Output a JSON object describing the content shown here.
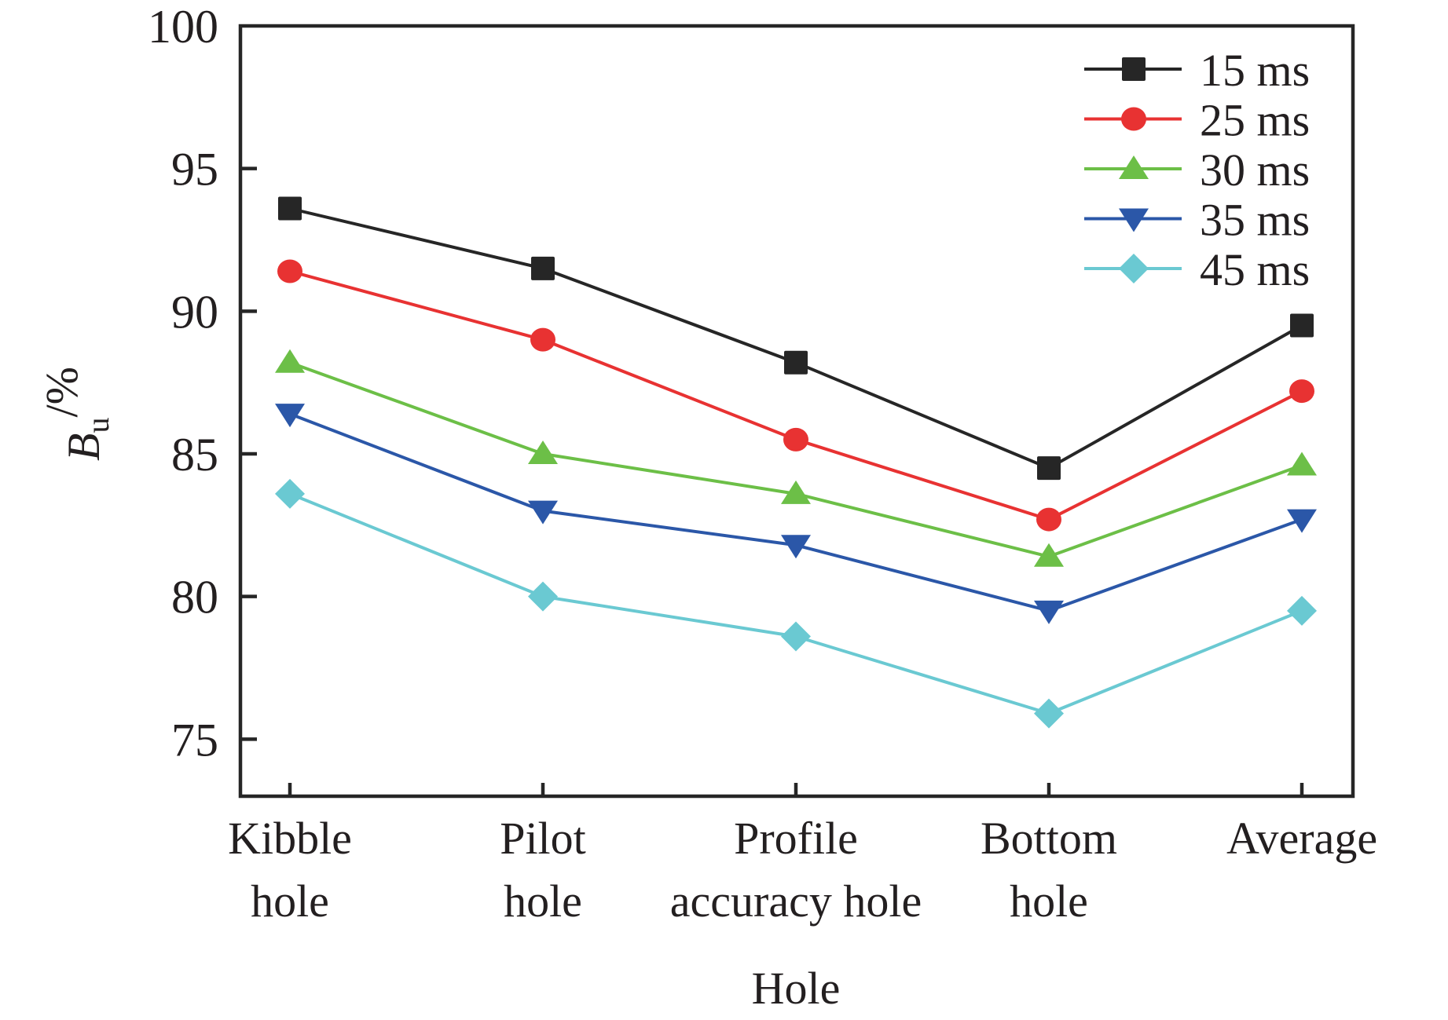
{
  "chart_data": {
    "type": "line",
    "title": "",
    "xlabel": "Hole",
    "ylabel": {
      "main": "B",
      "subscript": "u",
      "suffix": "/%"
    },
    "categories": [
      [
        "Kibble",
        "hole"
      ],
      [
        "Pilot",
        "hole"
      ],
      [
        "Profile",
        "accuracy hole"
      ],
      [
        "Bottom",
        "hole"
      ],
      [
        "Average"
      ]
    ],
    "ylim": [
      73,
      100
    ],
    "yticks": [
      75,
      80,
      85,
      90,
      95,
      100
    ],
    "grid": false,
    "legend_position": "top-right",
    "series": [
      {
        "name": "15 ms",
        "color": "#262626",
        "marker": "square",
        "values": [
          93.6,
          91.5,
          88.2,
          84.5,
          89.5
        ]
      },
      {
        "name": "25 ms",
        "color": "#e83232",
        "marker": "circle",
        "values": [
          91.4,
          89.0,
          85.5,
          82.7,
          87.2
        ]
      },
      {
        "name": "30 ms",
        "color": "#6cbf47",
        "marker": "triangle-up",
        "values": [
          88.2,
          85.0,
          83.6,
          81.4,
          84.6
        ]
      },
      {
        "name": "35 ms",
        "color": "#2b57a8",
        "marker": "triangle-down",
        "values": [
          86.4,
          83.0,
          81.8,
          79.5,
          82.7
        ]
      },
      {
        "name": "45 ms",
        "color": "#6ac9d2",
        "marker": "diamond",
        "values": [
          83.6,
          80.0,
          78.6,
          75.9,
          79.5
        ]
      }
    ]
  }
}
